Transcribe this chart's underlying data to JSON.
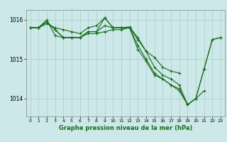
{
  "bg_color": "#cce8e8",
  "grid_color": "#aacccc",
  "line_color": "#1a6b1a",
  "marker_color": "#1a6b1a",
  "xlabel": "Graphe pression niveau de la mer (hPa)",
  "xlim": [
    -0.5,
    23.5
  ],
  "ylim": [
    1013.55,
    1016.25
  ],
  "yticks": [
    1014,
    1015,
    1016
  ],
  "xticks": [
    0,
    1,
    2,
    3,
    4,
    5,
    6,
    7,
    8,
    9,
    10,
    11,
    12,
    13,
    14,
    15,
    16,
    17,
    18,
    19,
    20,
    21,
    22,
    23
  ],
  "series": [
    [
      1015.8,
      1015.8,
      1015.9,
      1015.8,
      1015.75,
      1015.7,
      1015.65,
      1015.8,
      1015.85,
      1016.05,
      1015.8,
      1015.8,
      1015.8,
      1015.5,
      1015.2,
      1014.8,
      1014.6,
      1014.5,
      1014.35,
      1013.85,
      1014.0,
      1014.75,
      1015.5,
      1015.55
    ],
    [
      1015.8,
      1015.8,
      1015.95,
      1015.75,
      1015.55,
      1015.55,
      1015.55,
      1015.7,
      1015.7,
      1015.85,
      1015.8,
      1015.8,
      1015.8,
      1015.35,
      1015.0,
      1014.65,
      1014.5,
      1014.35,
      1014.25,
      1013.85,
      1014.0,
      1014.75,
      1015.5,
      1015.55
    ],
    [
      1015.8,
      1015.8,
      1016.0,
      1015.6,
      1015.55,
      1015.55,
      1015.55,
      1015.65,
      1015.65,
      1015.7,
      1015.75,
      1015.75,
      1015.8,
      1015.25,
      1014.95,
      1014.6,
      1014.5,
      1014.35,
      1014.2,
      1013.85,
      1014.0,
      1014.2,
      null,
      null
    ],
    [
      1015.8,
      1015.8,
      1015.95,
      1015.75,
      1015.55,
      1015.55,
      1015.55,
      1015.7,
      1015.7,
      1016.05,
      1015.8,
      1015.8,
      1015.82,
      1015.55,
      1015.2,
      1015.05,
      1014.8,
      1014.7,
      1014.65,
      null,
      null,
      null,
      null,
      null
    ]
  ]
}
